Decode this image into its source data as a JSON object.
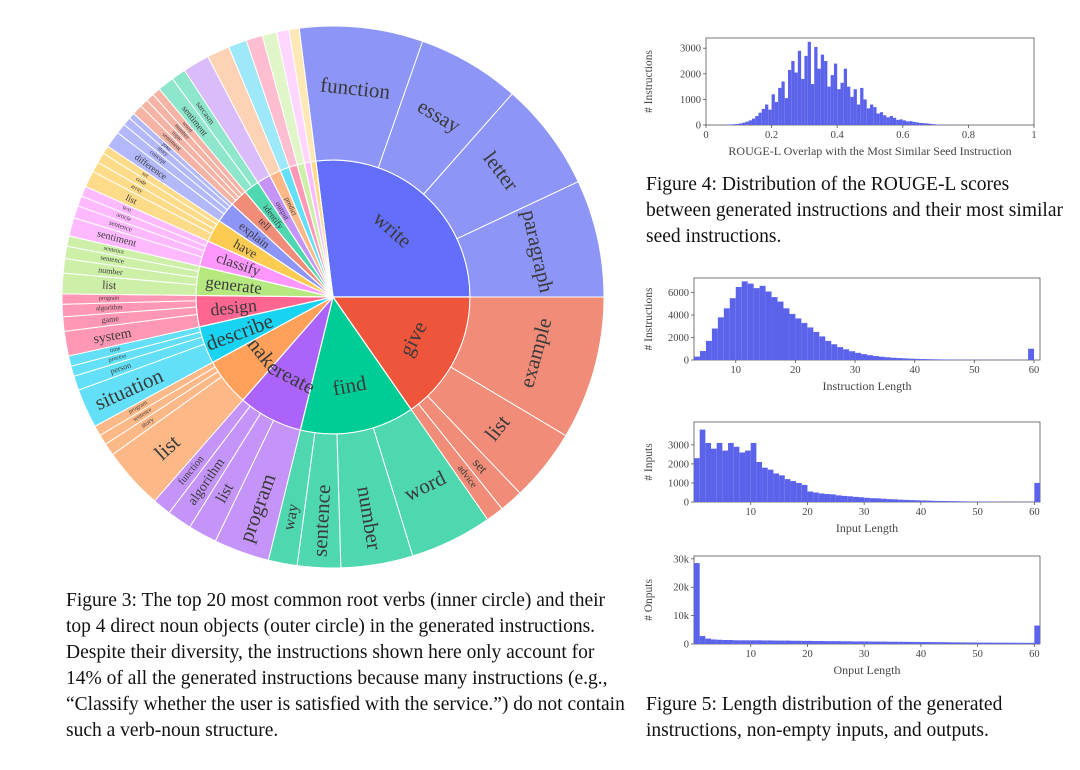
{
  "colors": {
    "bar": "#5b63ea",
    "axis": "#555555",
    "edge": "#ffffff",
    "text": "#3a3a3a"
  },
  "captions": {
    "fig3": "Figure 3: The top 20 most common root verbs (inner circle) and their top 4 direct noun objects (outer circle) in the generated instructions. Despite their diversity, the instructions shown here only account for 14% of all the generated instructions because many instructions (e.g., “Classify whether the user is satisfied with the service.”) do not contain such a verb-noun structure.",
    "fig4": "Figure 4: Distribution of the ROUGE-L scores between generated instructions and their most similar seed instructions.",
    "fig5": "Figure 5: Length distribution of the generated instructions, non-empty inputs, and outputs."
  },
  "chart_data": [
    {
      "type": "sunburst",
      "title": "Top 20 root verbs and their top 4 direct noun objects",
      "verbs": [
        {
          "name": "write",
          "value": 22.0,
          "color": "#636efa",
          "light": "#8d95f7",
          "nouns": [
            {
              "name": "function",
              "value": 6.0
            },
            {
              "name": "essay",
              "value": 5.0
            },
            {
              "name": "letter",
              "value": 5.3
            },
            {
              "name": "paragraph",
              "value": 5.7
            }
          ]
        },
        {
          "name": "give",
          "value": 12.5,
          "color": "#ef553b",
          "light": "#f08c78",
          "nouns": [
            {
              "name": "example",
              "value": 7.3
            },
            {
              "name": "list",
              "value": 3.7
            },
            {
              "name": "set",
              "value": 1.2
            },
            {
              "name": "advice",
              "value": 0.9
            }
          ]
        },
        {
          "name": "find",
          "value": 11.0,
          "color": "#00cc96",
          "light": "#4fd8b0",
          "nouns": [
            {
              "name": "word",
              "value": 4.0
            },
            {
              "name": "number",
              "value": 3.5
            },
            {
              "name": "sentence",
              "value": 2.1
            },
            {
              "name": "way",
              "value": 1.4
            }
          ]
        },
        {
          "name": "create",
          "value": 6.2,
          "color": "#ab63fa",
          "light": "#c494f9",
          "nouns": [
            {
              "name": "program",
              "value": 2.7
            },
            {
              "name": "list",
              "value": 1.4
            },
            {
              "name": "algorithm",
              "value": 1.2
            },
            {
              "name": "function",
              "value": 0.9
            }
          ]
        },
        {
          "name": "make",
          "value": 4.6,
          "color": "#ffa15a",
          "light": "#fdb888",
          "nouns": [
            {
              "name": "list",
              "value": 3.0
            },
            {
              "name": "story",
              "value": 0.6
            },
            {
              "name": "sentence",
              "value": 0.5
            },
            {
              "name": "program",
              "value": 0.5
            }
          ]
        },
        {
          "name": "describe",
          "value": 3.6,
          "color": "#19d3f3",
          "light": "#63e0f7",
          "nouns": [
            {
              "name": "situation",
              "value": 1.9
            },
            {
              "name": "person",
              "value": 0.7
            },
            {
              "name": "process",
              "value": 0.5
            },
            {
              "name": "time",
              "value": 0.5
            }
          ]
        },
        {
          "name": "design",
          "value": 3.0,
          "color": "#ff6692",
          "light": "#ff97b5",
          "nouns": [
            {
              "name": "system",
              "value": 1.2
            },
            {
              "name": "game",
              "value": 0.7
            },
            {
              "name": "algorithm",
              "value": 0.6
            },
            {
              "name": "program",
              "value": 0.5
            }
          ]
        },
        {
          "name": "generate",
          "value": 2.8,
          "color": "#b6e880",
          "light": "#cdefa8",
          "nouns": [
            {
              "name": "list",
              "value": 1.0
            },
            {
              "name": "number",
              "value": 0.7
            },
            {
              "name": "sentence",
              "value": 0.6
            },
            {
              "name": "sentence",
              "value": 0.5
            }
          ]
        },
        {
          "name": "classify",
          "value": 2.5,
          "color": "#ff97ff",
          "light": "#ffbaff",
          "nouns": [
            {
              "name": "sentiment",
              "value": 0.9
            },
            {
              "name": "sentence",
              "value": 0.6
            },
            {
              "name": "article",
              "value": 0.5
            },
            {
              "name": "text",
              "value": 0.5
            }
          ]
        },
        {
          "name": "have",
          "value": 2.2,
          "color": "#fecb52",
          "light": "#fedb88",
          "nouns": [
            {
              "name": "list",
              "value": 0.8
            },
            {
              "name": "array",
              "value": 0.5
            },
            {
              "name": "code",
              "value": 0.5
            },
            {
              "name": "set",
              "value": 0.4
            }
          ]
        },
        {
          "name": "explain",
          "value": 2.0,
          "color": "#8d95f7",
          "light": "#b3b8fa",
          "nouns": [
            {
              "name": "difference",
              "value": 0.8
            },
            {
              "name": "concept",
              "value": 0.5
            },
            {
              "name": "story",
              "value": 0.4
            },
            {
              "name": "joke",
              "value": 0.3
            }
          ]
        },
        {
          "name": "tell",
          "value": 1.7,
          "color": "#f08c78",
          "light": "#f5b3a5",
          "nouns": [
            {
              "name": "sentiment",
              "value": 0.5
            },
            {
              "name": "topic",
              "value": 0.4
            },
            {
              "name": "number",
              "value": 0.4
            },
            {
              "name": "word",
              "value": 0.4
            }
          ]
        },
        {
          "name": "identify",
          "value": 1.5,
          "color": "#4fd8b0",
          "light": "#8ee6cc",
          "nouns": [
            {
              "name": "sentiment",
              "value": 0.8
            },
            {
              "name": "sarcasm",
              "value": 0.7
            }
          ]
        },
        {
          "name": "output",
          "value": 1.3,
          "color": "#c494f9",
          "light": "#dbbcfb",
          "nouns": []
        },
        {
          "name": "predict",
          "value": 1.1,
          "color": "#fdb888",
          "light": "#fed3b5",
          "nouns": []
        },
        {
          "name": "",
          "value": 0.9,
          "color": "#63e0f7",
          "light": "#9de9f9",
          "nouns": []
        },
        {
          "name": "",
          "value": 0.8,
          "color": "#ff97b5",
          "light": "#ffbdd0",
          "nouns": []
        },
        {
          "name": "",
          "value": 0.7,
          "color": "#cdefa8",
          "light": "#e0f5c8",
          "nouns": []
        },
        {
          "name": "",
          "value": 0.6,
          "color": "#ffbaff",
          "light": "#ffd6ff",
          "nouns": []
        },
        {
          "name": "",
          "value": 0.5,
          "color": "#fedb88",
          "light": "#fee8b5",
          "nouns": []
        }
      ]
    },
    {
      "type": "bar",
      "title": "ROUGE-L Overlap with the Most Similar Seed Instruction",
      "xlabel": "ROUGE-L Overlap with the Most Similar Seed Instruction",
      "ylabel": "# Instructions",
      "xlim": [
        0,
        1
      ],
      "ylim": [
        0,
        3400
      ],
      "xticks": [
        0,
        0.2,
        0.4,
        0.6,
        0.8,
        1
      ],
      "xtick_labels": [
        "0",
        "0.2",
        "0.4",
        "0.6",
        "0.8",
        "1"
      ],
      "yticks": [
        0,
        1000,
        2000,
        3000
      ],
      "bin_start": 0.04,
      "bin_width": 0.01,
      "values": [
        5,
        10,
        15,
        20,
        30,
        40,
        60,
        90,
        130,
        180,
        250,
        350,
        480,
        630,
        800,
        600,
        1200,
        900,
        1450,
        1700,
        1050,
        2150,
        2500,
        2050,
        2900,
        1800,
        2700,
        3250,
        1600,
        3050,
        2200,
        2750,
        2500,
        1500,
        1950,
        2400,
        1400,
        1650,
        2200,
        1500,
        1100,
        1400,
        800,
        1450,
        1000,
        650,
        800,
        700,
        450,
        500,
        380,
        300,
        350,
        280,
        200,
        220,
        180,
        140,
        150,
        120,
        100,
        80,
        70,
        60,
        45,
        30,
        20,
        15,
        10,
        8,
        6,
        5,
        4,
        3,
        2,
        2,
        1
      ]
    },
    {
      "type": "bar",
      "title": "Instruction Length",
      "xlabel": "Instruction Length",
      "ylabel": "# Instructions",
      "xlim": [
        3,
        61
      ],
      "ylim": [
        0,
        7300
      ],
      "xticks": [
        10,
        20,
        30,
        40,
        50,
        60
      ],
      "yticks": [
        0,
        2000,
        4000,
        6000
      ],
      "bin_start": 3,
      "bin_width": 1,
      "values": [
        300,
        800,
        1700,
        2800,
        3800,
        4600,
        5500,
        6500,
        7000,
        6800,
        6400,
        6600,
        6100,
        5600,
        5200,
        4600,
        4100,
        3700,
        3300,
        2900,
        2500,
        2100,
        1700,
        1400,
        1150,
        950,
        780,
        640,
        520,
        430,
        350,
        290,
        240,
        200,
        170,
        145,
        120,
        100,
        85,
        70,
        60,
        50,
        42,
        36,
        30,
        25,
        21,
        18,
        16,
        14,
        12,
        10,
        9,
        8,
        7,
        6,
        1000
      ]
    },
    {
      "type": "bar",
      "title": "Input Length",
      "xlabel": "Input Length",
      "ylabel": "# Inputs",
      "xlim": [
        0,
        61
      ],
      "ylim": [
        0,
        4200
      ],
      "xticks": [
        10,
        20,
        30,
        40,
        50,
        60
      ],
      "yticks": [
        0,
        1000,
        2000,
        3000
      ],
      "bin_start": 0,
      "bin_width": 1,
      "values": [
        2300,
        3800,
        3100,
        2800,
        3100,
        2700,
        3100,
        2900,
        2600,
        2700,
        3100,
        2100,
        1800,
        1700,
        1500,
        1400,
        1200,
        1100,
        1000,
        900,
        550,
        500,
        450,
        420,
        400,
        350,
        320,
        300,
        270,
        250,
        220,
        200,
        190,
        170,
        150,
        140,
        120,
        110,
        100,
        90,
        80,
        70,
        60,
        55,
        50,
        45,
        40,
        35,
        30,
        28,
        25,
        22,
        20,
        18,
        16,
        14,
        12,
        10,
        9,
        8,
        1000
      ]
    },
    {
      "type": "bar",
      "title": "Onput Length",
      "xlabel": "Onput Length",
      "ylabel": "# Onputs",
      "xlim": [
        0,
        61
      ],
      "ylim": [
        0,
        31000
      ],
      "xticks": [
        10,
        20,
        30,
        40,
        50,
        60
      ],
      "yticks": [
        0,
        10000,
        20000,
        30000
      ],
      "ytick_labels": [
        "0",
        "10k",
        "20k",
        "30k"
      ],
      "bin_start": 0,
      "bin_width": 1,
      "values": [
        28500,
        2800,
        1900,
        1600,
        1500,
        1400,
        1400,
        1300,
        1300,
        1300,
        1300,
        1300,
        1250,
        1250,
        1200,
        1200,
        1200,
        1150,
        1150,
        1100,
        1100,
        1050,
        1050,
        1000,
        1000,
        1000,
        950,
        950,
        900,
        900,
        900,
        850,
        850,
        850,
        800,
        800,
        780,
        760,
        740,
        720,
        700,
        680,
        660,
        640,
        620,
        600,
        580,
        560,
        540,
        520,
        500,
        490,
        480,
        470,
        460,
        450,
        440,
        430,
        420,
        410,
        6500
      ]
    }
  ]
}
